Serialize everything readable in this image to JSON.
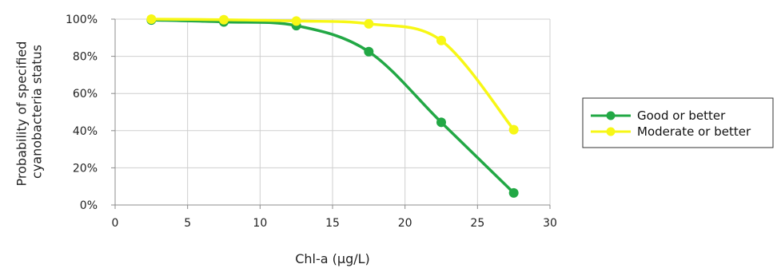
{
  "chart_data": {
    "type": "line",
    "title": "",
    "xlabel": "Chl-a (µg/L)",
    "ylabel_lines": [
      "Probability of specified",
      "cyanobacteria status"
    ],
    "xlim": [
      0,
      30
    ],
    "ylim": [
      0,
      1
    ],
    "x_ticks": [
      0,
      5,
      10,
      15,
      20,
      25,
      30
    ],
    "y_ticks": [
      0,
      0.2,
      0.4,
      0.6,
      0.8,
      1.0
    ],
    "x_tick_labels": [
      "0",
      "5",
      "10",
      "15",
      "20",
      "25",
      "30"
    ],
    "y_tick_labels": [
      "0%",
      "20%",
      "40%",
      "60%",
      "80%",
      "100%"
    ],
    "grid": {
      "x": true,
      "y": true
    },
    "legend_position": "right",
    "x": [
      2.5,
      7.5,
      12.5,
      17.5,
      22.5,
      27.5
    ],
    "series": [
      {
        "name": "Good or better",
        "color": "#22a845",
        "values": [
          0.995,
          0.985,
          0.965,
          0.825,
          0.445,
          0.065
        ]
      },
      {
        "name": "Moderate or better",
        "color": "#f7f716",
        "values": [
          1.0,
          0.997,
          0.99,
          0.975,
          0.885,
          0.405
        ]
      }
    ]
  }
}
